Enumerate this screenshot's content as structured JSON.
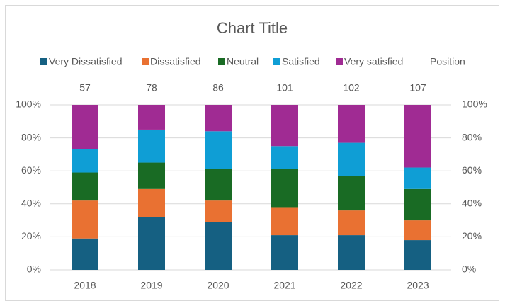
{
  "chart_data": {
    "type": "bar",
    "stacked": "percent",
    "title": "Chart Title",
    "categories": [
      "2018",
      "2019",
      "2020",
      "2021",
      "2022",
      "2023"
    ],
    "series": [
      {
        "name": "Very Dissatisfied",
        "color": "#156082",
        "values": [
          19,
          32,
          29,
          21,
          21,
          18
        ]
      },
      {
        "name": "Dissatisfied",
        "color": "#e97132",
        "values": [
          23,
          17,
          13,
          17,
          15,
          12
        ]
      },
      {
        "name": "Neutral",
        "color": "#196b24",
        "values": [
          17,
          16,
          19,
          23,
          21,
          19
        ]
      },
      {
        "name": "Satisfied",
        "color": "#0f9ed5",
        "values": [
          14,
          20,
          23,
          14,
          20,
          13
        ]
      },
      {
        "name": "Very satisfied",
        "color": "#a02b93",
        "values": [
          27,
          15,
          16,
          25,
          23,
          38
        ]
      },
      {
        "name": "Position",
        "values": [
          57,
          78,
          86,
          101,
          102,
          107
        ]
      }
    ],
    "ylim": [
      0,
      100
    ],
    "yticks": [
      {
        "value": 0,
        "label": "0%"
      },
      {
        "value": 20,
        "label": "20%"
      },
      {
        "value": 40,
        "label": "40%"
      },
      {
        "value": 60,
        "label": "60%"
      },
      {
        "value": 80,
        "label": "80%"
      },
      {
        "value": 100,
        "label": "100%"
      }
    ],
    "y2lim": [
      0,
      100
    ],
    "y2ticks": [
      {
        "value": 0,
        "label": "0%"
      },
      {
        "value": 20,
        "label": "20%"
      },
      {
        "value": 40,
        "label": "40%"
      },
      {
        "value": 60,
        "label": "60%"
      },
      {
        "value": 80,
        "label": "80%"
      },
      {
        "value": 100,
        "label": "100%"
      }
    ],
    "grid": true,
    "legend": "top"
  }
}
